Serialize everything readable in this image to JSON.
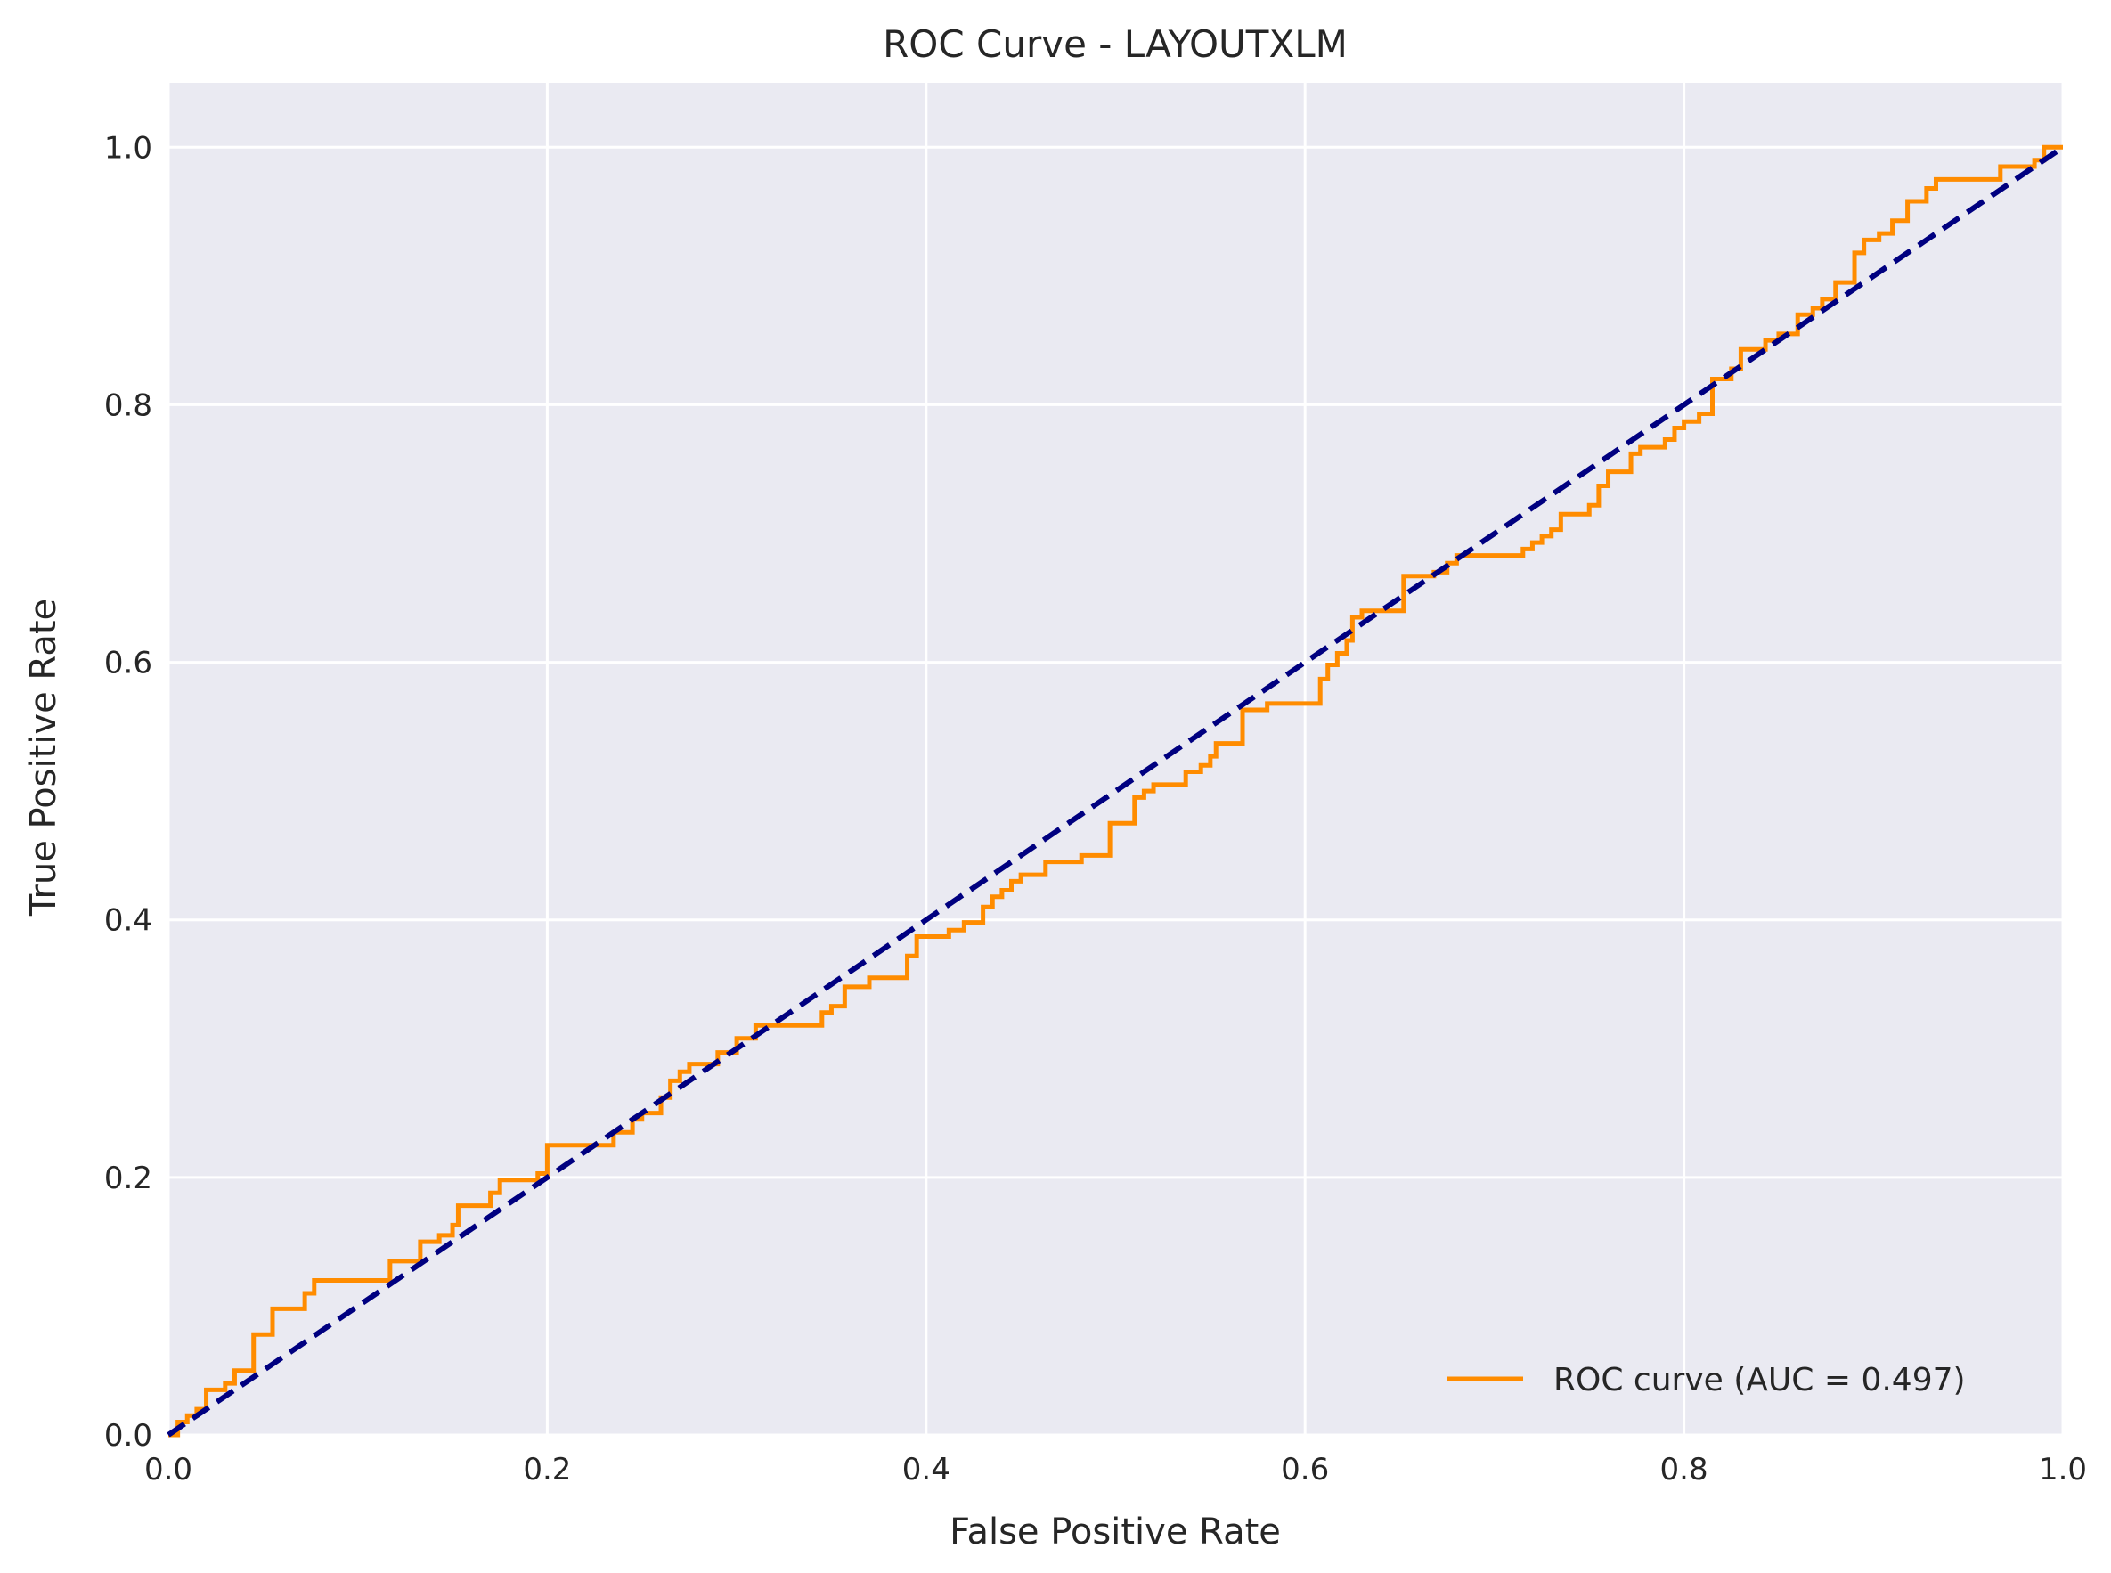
{
  "chart_data": {
    "type": "line",
    "title": "ROC Curve - LAYOUTXLM",
    "xlabel": "False Positive Rate",
    "ylabel": "True Positive Rate",
    "xlim": [
      0.0,
      1.0
    ],
    "ylim": [
      0.0,
      1.05
    ],
    "xticks": [
      "0.0",
      "0.2",
      "0.4",
      "0.6",
      "0.8",
      "1.0"
    ],
    "yticks": [
      "0.0",
      "0.2",
      "0.4",
      "0.6",
      "0.8",
      "1.0"
    ],
    "grid": true,
    "legend_position": "lower-right",
    "colors": {
      "background": "#eaeaf2",
      "grid": "#ffffff",
      "roc": "#ff8c00",
      "diagonal": "#000080"
    },
    "series": [
      {
        "name": "ROC curve (AUC = 0.497)",
        "style": "solid",
        "x": [
          0.0,
          0.005,
          0.005,
          0.01,
          0.01,
          0.015,
          0.015,
          0.02,
          0.02,
          0.03,
          0.03,
          0.035,
          0.035,
          0.045,
          0.045,
          0.055,
          0.055,
          0.072,
          0.072,
          0.077,
          0.077,
          0.117,
          0.117,
          0.133,
          0.133,
          0.143,
          0.143,
          0.15,
          0.15,
          0.153,
          0.153,
          0.17,
          0.17,
          0.175,
          0.175,
          0.195,
          0.195,
          0.2,
          0.2,
          0.235,
          0.235,
          0.245,
          0.245,
          0.25,
          0.25,
          0.26,
          0.26,
          0.265,
          0.265,
          0.27,
          0.27,
          0.275,
          0.275,
          0.29,
          0.29,
          0.3,
          0.3,
          0.31,
          0.31,
          0.345,
          0.345,
          0.35,
          0.35,
          0.357,
          0.357,
          0.37,
          0.37,
          0.39,
          0.39,
          0.395,
          0.395,
          0.412,
          0.412,
          0.42,
          0.42,
          0.43,
          0.43,
          0.435,
          0.435,
          0.44,
          0.44,
          0.445,
          0.445,
          0.45,
          0.45,
          0.463,
          0.463,
          0.482,
          0.482,
          0.497,
          0.497,
          0.51,
          0.51,
          0.515,
          0.515,
          0.52,
          0.52,
          0.537,
          0.537,
          0.545,
          0.545,
          0.55,
          0.55,
          0.553,
          0.553,
          0.567,
          0.567,
          0.58,
          0.58,
          0.608,
          0.608,
          0.612,
          0.612,
          0.617,
          0.617,
          0.622,
          0.622,
          0.625,
          0.625,
          0.63,
          0.63,
          0.652,
          0.652,
          0.668,
          0.668,
          0.675,
          0.675,
          0.68,
          0.68,
          0.715,
          0.715,
          0.72,
          0.72,
          0.725,
          0.725,
          0.73,
          0.73,
          0.735,
          0.735,
          0.75,
          0.75,
          0.755,
          0.755,
          0.76,
          0.76,
          0.772,
          0.772,
          0.777,
          0.777,
          0.79,
          0.79,
          0.795,
          0.795,
          0.8,
          0.8,
          0.808,
          0.808,
          0.815,
          0.815,
          0.825,
          0.825,
          0.83,
          0.83,
          0.843,
          0.843,
          0.85,
          0.85,
          0.86,
          0.86,
          0.868,
          0.868,
          0.873,
          0.873,
          0.88,
          0.88,
          0.89,
          0.89,
          0.895,
          0.895,
          0.903,
          0.903,
          0.91,
          0.91,
          0.918,
          0.918,
          0.928,
          0.928,
          0.933,
          0.933,
          0.967,
          0.967,
          0.985,
          0.985,
          0.99,
          0.99,
          1.0
        ],
        "y": [
          0.0,
          0.0,
          0.01,
          0.01,
          0.015,
          0.015,
          0.02,
          0.02,
          0.035,
          0.035,
          0.04,
          0.04,
          0.05,
          0.05,
          0.078,
          0.078,
          0.098,
          0.098,
          0.11,
          0.11,
          0.12,
          0.12,
          0.135,
          0.135,
          0.15,
          0.15,
          0.155,
          0.155,
          0.163,
          0.163,
          0.178,
          0.178,
          0.188,
          0.188,
          0.198,
          0.198,
          0.203,
          0.203,
          0.225,
          0.225,
          0.235,
          0.235,
          0.245,
          0.245,
          0.25,
          0.25,
          0.262,
          0.262,
          0.275,
          0.275,
          0.282,
          0.282,
          0.288,
          0.288,
          0.297,
          0.297,
          0.308,
          0.308,
          0.318,
          0.318,
          0.328,
          0.328,
          0.333,
          0.333,
          0.348,
          0.348,
          0.355,
          0.355,
          0.372,
          0.372,
          0.387,
          0.387,
          0.392,
          0.392,
          0.398,
          0.398,
          0.41,
          0.41,
          0.418,
          0.418,
          0.423,
          0.423,
          0.43,
          0.43,
          0.435,
          0.435,
          0.445,
          0.445,
          0.45,
          0.45,
          0.475,
          0.475,
          0.495,
          0.495,
          0.5,
          0.5,
          0.505,
          0.505,
          0.515,
          0.515,
          0.52,
          0.52,
          0.527,
          0.527,
          0.537,
          0.537,
          0.563,
          0.563,
          0.568,
          0.568,
          0.587,
          0.587,
          0.598,
          0.598,
          0.607,
          0.607,
          0.617,
          0.617,
          0.635,
          0.635,
          0.64,
          0.64,
          0.667,
          0.667,
          0.67,
          0.67,
          0.677,
          0.677,
          0.683,
          0.683,
          0.688,
          0.688,
          0.693,
          0.693,
          0.698,
          0.698,
          0.703,
          0.703,
          0.715,
          0.715,
          0.722,
          0.722,
          0.737,
          0.737,
          0.748,
          0.748,
          0.762,
          0.762,
          0.767,
          0.767,
          0.773,
          0.773,
          0.782,
          0.782,
          0.787,
          0.787,
          0.793,
          0.793,
          0.82,
          0.82,
          0.828,
          0.828,
          0.843,
          0.843,
          0.85,
          0.85,
          0.855,
          0.855,
          0.87,
          0.87,
          0.875,
          0.875,
          0.882,
          0.882,
          0.895,
          0.895,
          0.918,
          0.918,
          0.928,
          0.928,
          0.933,
          0.933,
          0.943,
          0.943,
          0.958,
          0.958,
          0.968,
          0.968,
          0.975,
          0.975,
          0.985,
          0.985,
          0.99,
          0.99,
          1.0,
          1.0
        ]
      },
      {
        "name": "",
        "style": "dashed",
        "x": [
          0.0,
          1.0
        ],
        "y": [
          0.0,
          1.0
        ]
      }
    ]
  }
}
